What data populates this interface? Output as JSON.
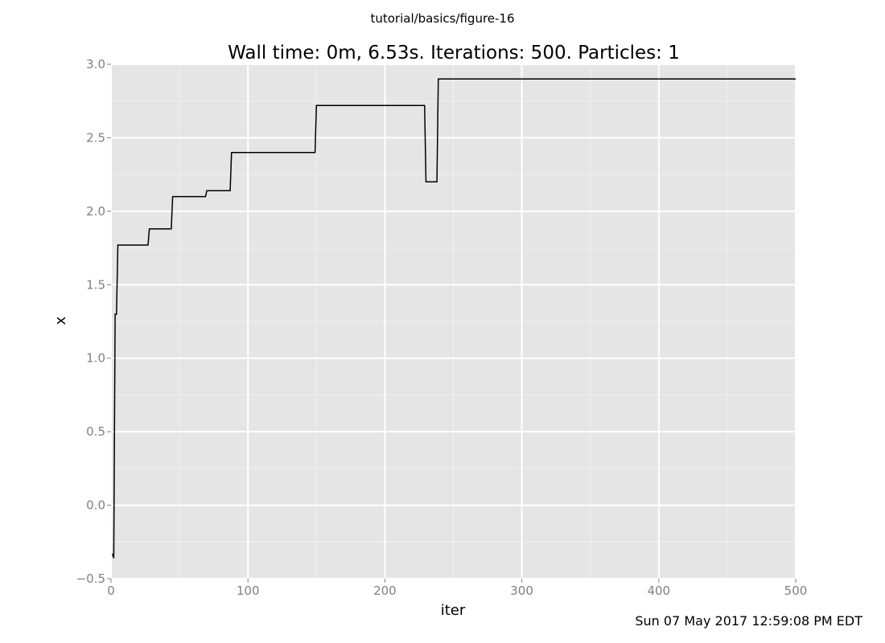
{
  "figure_name": "tutorial/basics/figure-16",
  "timestamp": "Sun 07 May 2017 12:59:08 PM EDT",
  "colors": {
    "panel_background": "#e5e5e5",
    "grid_major": "#ffffff",
    "grid_minor": "#f2f2f2",
    "line": "#000000",
    "tick_label": "#808080",
    "tick_mark": "#808080"
  },
  "chart_data": {
    "type": "line",
    "title": "Wall time: 0m, 6.53s. Iterations: 500. Particles: 1",
    "xlabel": "iter",
    "ylabel": "x",
    "xlim": [
      0,
      500
    ],
    "ylim": [
      -0.5,
      3.0
    ],
    "xticks": [
      0,
      100,
      200,
      300,
      400,
      500
    ],
    "xtick_labels": [
      "0",
      "100",
      "200",
      "300",
      "400",
      "500"
    ],
    "yticks": [
      -0.5,
      0.0,
      0.5,
      1.0,
      1.5,
      2.0,
      2.5,
      3.0
    ],
    "ytick_labels": [
      "−0.5",
      "0.0",
      "0.5",
      "1.0",
      "1.5",
      "2.0",
      "2.5",
      "3.0"
    ],
    "grid": true,
    "legend": false,
    "series": [
      {
        "x": [
          1,
          2,
          3,
          4,
          5,
          27,
          28,
          44,
          45,
          69,
          70,
          87,
          88,
          149,
          150,
          229,
          230,
          238,
          239,
          500
        ],
        "y": [
          -0.33,
          -0.36,
          1.3,
          1.3,
          1.77,
          1.77,
          1.88,
          1.88,
          2.1,
          2.1,
          2.14,
          2.14,
          2.4,
          2.4,
          2.72,
          2.72,
          2.2,
          2.2,
          2.9,
          2.9
        ]
      }
    ]
  }
}
